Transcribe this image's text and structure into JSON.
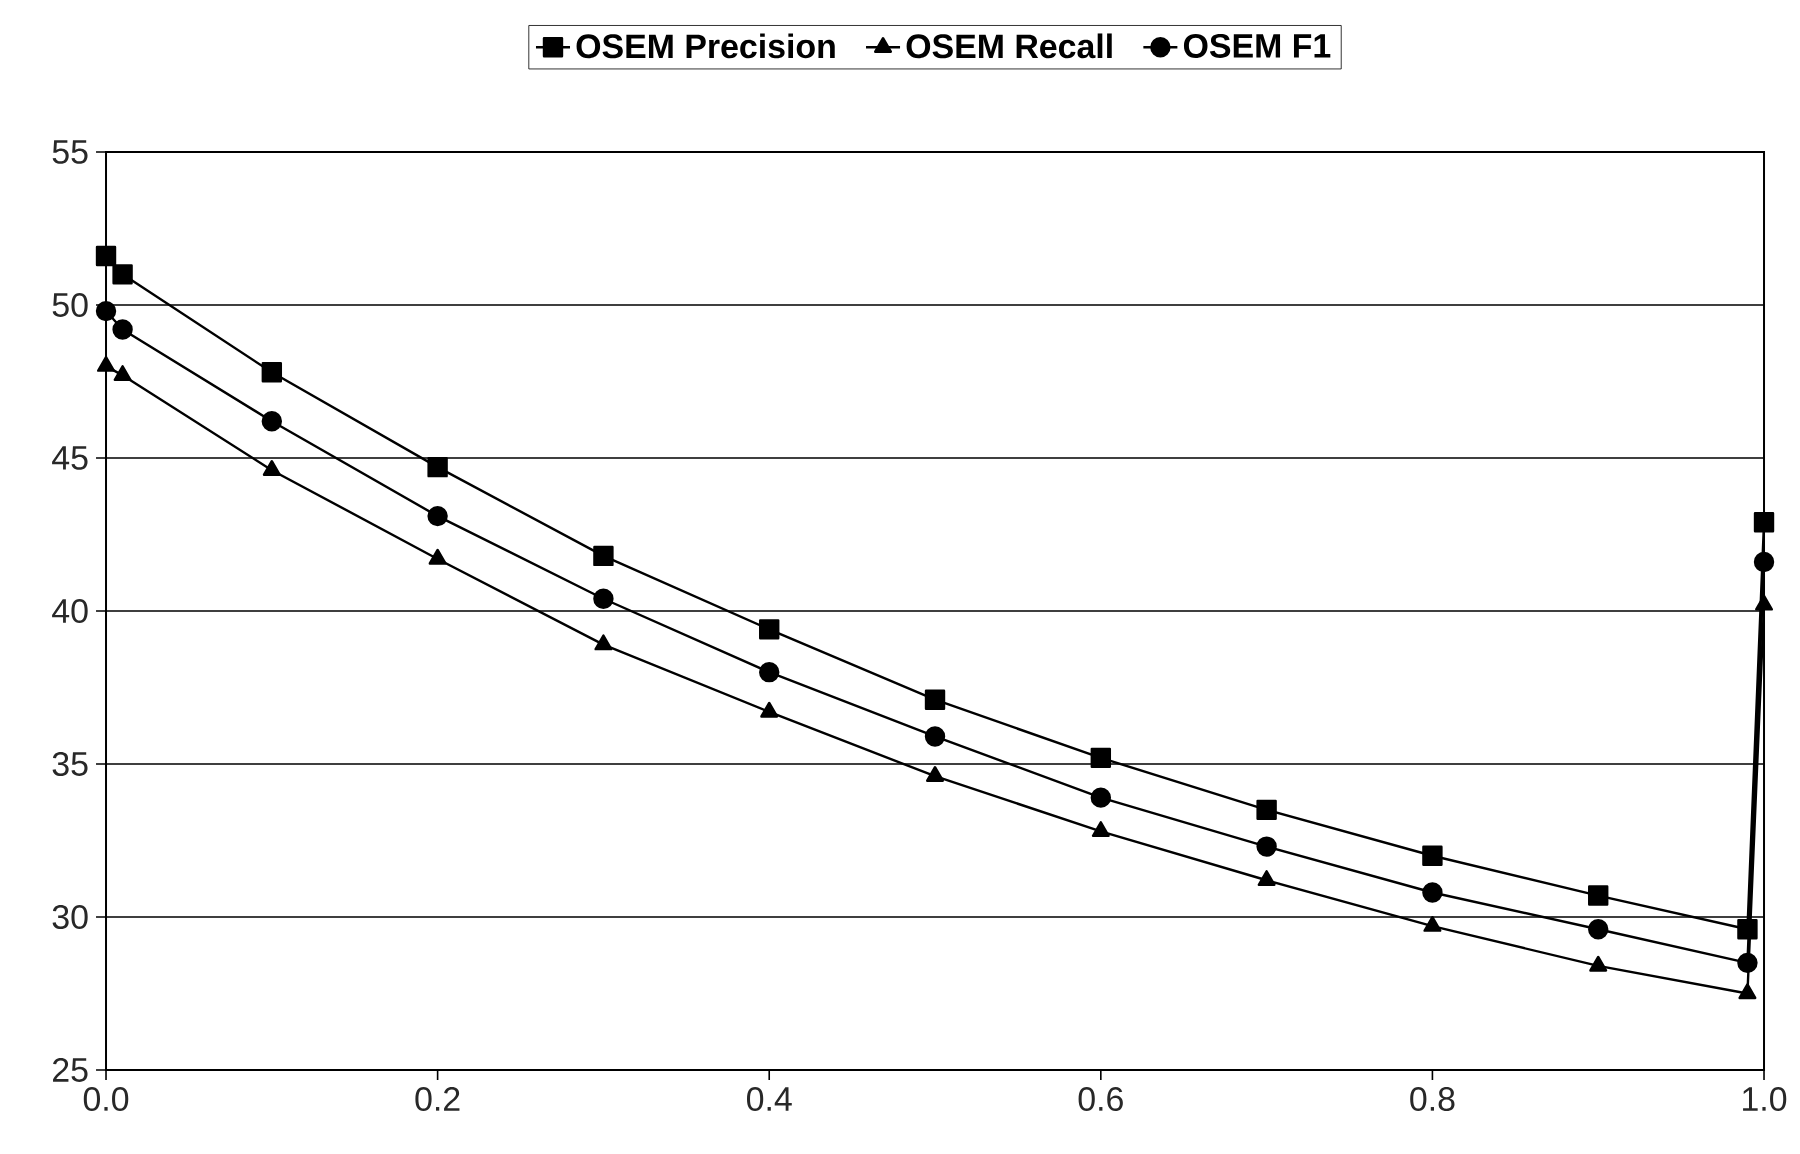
{
  "chart_data": {
    "type": "line",
    "x": [
      0,
      0.01,
      0.1,
      0.2,
      0.3,
      0.4,
      0.5,
      0.6,
      0.7,
      0.8,
      0.9,
      0.99,
      1.0
    ],
    "series": [
      {
        "name": "OSEM Precision",
        "color": "#000000",
        "marker": "square",
        "values": [
          51.6,
          51.0,
          47.8,
          44.7,
          41.8,
          39.4,
          37.1,
          35.2,
          33.5,
          32.0,
          30.7,
          29.6,
          42.9
        ]
      },
      {
        "name": "OSEM Recall",
        "color": "#000000",
        "marker": "triangle",
        "values": [
          48.0,
          47.7,
          44.6,
          41.7,
          38.9,
          36.7,
          34.6,
          32.8,
          31.2,
          29.7,
          28.4,
          27.5,
          40.2
        ]
      },
      {
        "name": "OSEM F1",
        "color": "#000000",
        "marker": "circle",
        "values": [
          49.8,
          49.2,
          46.2,
          43.1,
          40.4,
          38.0,
          35.9,
          33.9,
          32.3,
          30.8,
          29.6,
          28.5,
          41.6
        ]
      }
    ],
    "xlim": [
      0,
      1.0
    ],
    "xticks": [
      {
        "value": 0,
        "label": "0.0"
      },
      {
        "value": 0.2,
        "label": "0.2"
      },
      {
        "value": 0.4,
        "label": "0.4"
      },
      {
        "value": 0.6,
        "label": "0.6"
      },
      {
        "value": 0.8,
        "label": "0.8"
      },
      {
        "value": 1.0,
        "label": "1.0"
      }
    ],
    "ylim": [
      25,
      55
    ],
    "yticks": [
      25,
      30,
      35,
      40,
      45,
      50,
      55
    ],
    "grid": "y",
    "legend": "top",
    "line_style": "solid"
  }
}
